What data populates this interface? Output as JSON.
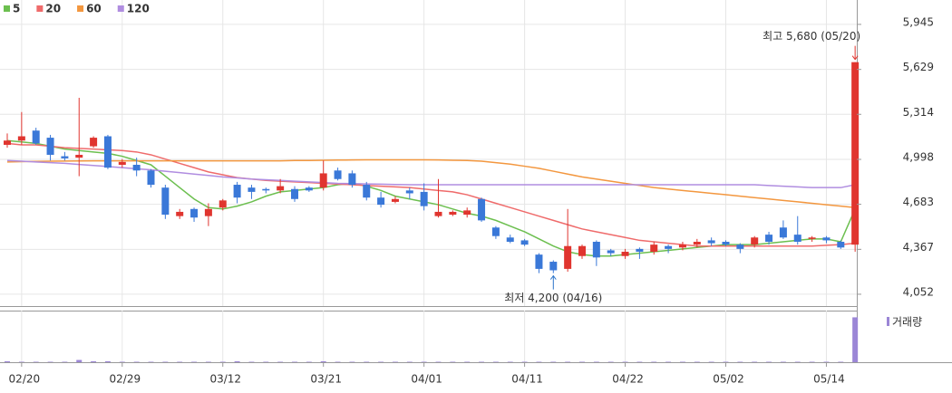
{
  "chart_data": {
    "type": "candlestick",
    "categories": [
      null,
      "02/20",
      null,
      null,
      null,
      null,
      null,
      null,
      "02/29",
      null,
      null,
      null,
      null,
      null,
      null,
      "03/12",
      null,
      null,
      null,
      null,
      null,
      null,
      "03/21",
      null,
      null,
      null,
      null,
      null,
      null,
      "04/01",
      null,
      null,
      null,
      null,
      null,
      null,
      "04/11",
      null,
      null,
      null,
      null,
      null,
      null,
      "04/22",
      null,
      null,
      null,
      null,
      null,
      null,
      "05/02",
      null,
      null,
      null,
      null,
      null,
      null,
      "05/14",
      null,
      null
    ],
    "open": [
      5100,
      5130,
      5200,
      5150,
      5020,
      5010,
      5090,
      5160,
      4960,
      4960,
      4920,
      4800,
      4600,
      4650,
      4600,
      4660,
      4820,
      4800,
      4790,
      4780,
      4790,
      4800,
      4800,
      4920,
      4900,
      4820,
      4730,
      4700,
      4780,
      4770,
      4600,
      4610,
      4610,
      4720,
      4520,
      4450,
      4430,
      4330,
      4280,
      4230,
      4320,
      4420,
      4360,
      4320,
      4370,
      4350,
      4390,
      4380,
      4400,
      4430,
      4420,
      4400,
      4400,
      4470,
      4520,
      4470,
      4440,
      4450,
      4420,
      4400
    ],
    "high": [
      5180,
      5330,
      5220,
      5170,
      5050,
      5430,
      5160,
      5170,
      5000,
      5010,
      4930,
      4820,
      4650,
      4660,
      4690,
      4720,
      4840,
      4820,
      4800,
      4860,
      4810,
      4810,
      4990,
      4940,
      4920,
      4840,
      4770,
      4740,
      4800,
      4830,
      4860,
      4640,
      4660,
      4730,
      4530,
      4470,
      4440,
      4340,
      4290,
      4650,
      4400,
      4430,
      4370,
      4370,
      4380,
      4420,
      4400,
      4420,
      4440,
      4450,
      4430,
      4410,
      4460,
      4490,
      4570,
      4600,
      4460,
      4460,
      4430,
      5680
    ],
    "low": [
      5080,
      5100,
      5100,
      4990,
      4990,
      4880,
      5080,
      4930,
      4940,
      4880,
      4800,
      4580,
      4580,
      4560,
      4530,
      4640,
      4690,
      4720,
      4760,
      4760,
      4700,
      4770,
      4780,
      4850,
      4800,
      4710,
      4660,
      4690,
      4720,
      4640,
      4590,
      4600,
      4590,
      4560,
      4440,
      4410,
      4390,
      4200,
      4200,
      4210,
      4300,
      4250,
      4320,
      4300,
      4300,
      4330,
      4340,
      4360,
      4380,
      4390,
      4390,
      4340,
      4380,
      4400,
      4440,
      4400,
      4420,
      4410,
      4370,
      4350
    ],
    "close": [
      5130,
      5160,
      5110,
      5030,
      5005,
      5030,
      5150,
      4940,
      4980,
      4920,
      4820,
      4610,
      4630,
      4590,
      4650,
      4710,
      4730,
      4770,
      4780,
      4810,
      4720,
      4780,
      4900,
      4860,
      4820,
      4730,
      4680,
      4720,
      4760,
      4670,
      4630,
      4630,
      4640,
      4570,
      4460,
      4420,
      4400,
      4230,
      4220,
      4390,
      4390,
      4310,
      4340,
      4350,
      4350,
      4400,
      4370,
      4400,
      4420,
      4410,
      4400,
      4370,
      4450,
      4420,
      4450,
      4420,
      4450,
      4430,
      4380,
      5680
    ],
    "up_color": "#e0352f",
    "down_color": "#3a78d8",
    "series": [
      {
        "name": "5",
        "color": "#6cbf4f",
        "values": [
          5130,
          5120,
          5110,
          5090,
          5070,
          5060,
          5050,
          5040,
          5020,
          4990,
          4960,
          4880,
          4800,
          4720,
          4660,
          4650,
          4670,
          4700,
          4740,
          4770,
          4780,
          4790,
          4800,
          4820,
          4830,
          4810,
          4780,
          4740,
          4720,
          4700,
          4680,
          4650,
          4620,
          4600,
          4570,
          4530,
          4490,
          4440,
          4390,
          4350,
          4330,
          4320,
          4320,
          4330,
          4340,
          4350,
          4360,
          4370,
          4380,
          4390,
          4400,
          4400,
          4400,
          4410,
          4420,
          4430,
          4440,
          4440,
          4420,
          4650
        ]
      },
      {
        "name": "20",
        "color": "#ef6b6b",
        "values": [
          5110,
          5100,
          5100,
          5090,
          5080,
          5075,
          5070,
          5065,
          5060,
          5050,
          5030,
          5000,
          4970,
          4940,
          4910,
          4890,
          4870,
          4860,
          4850,
          4845,
          4840,
          4835,
          4830,
          4825,
          4820,
          4815,
          4810,
          4805,
          4800,
          4790,
          4780,
          4770,
          4750,
          4720,
          4690,
          4660,
          4630,
          4600,
          4570,
          4540,
          4510,
          4490,
          4470,
          4450,
          4430,
          4420,
          4410,
          4400,
          4390,
          4390,
          4390,
          4390,
          4390,
          4390,
          4390,
          4390,
          4390,
          4395,
          4400,
          4410
        ]
      },
      {
        "name": "60",
        "color": "#f3973f",
        "values": [
          4980,
          4982,
          4984,
          4985,
          4986,
          4987,
          4988,
          4988,
          4988,
          4988,
          4988,
          4988,
          4988,
          4988,
          4988,
          4988,
          4988,
          4988,
          4988,
          4988,
          4990,
          4990,
          4992,
          4993,
          4994,
          4995,
          4995,
          4995,
          4995,
          4995,
          4994,
          4992,
          4990,
          4985,
          4975,
          4965,
          4950,
          4935,
          4915,
          4895,
          4875,
          4860,
          4845,
          4830,
          4815,
          4800,
          4790,
          4780,
          4770,
          4760,
          4750,
          4740,
          4730,
          4720,
          4710,
          4700,
          4690,
          4680,
          4670,
          4660
        ]
      },
      {
        "name": "120",
        "color": "#b08de0",
        "values": [
          4990,
          4985,
          4980,
          4975,
          4970,
          4962,
          4955,
          4948,
          4940,
          4932,
          4925,
          4915,
          4905,
          4895,
          4885,
          4875,
          4868,
          4860,
          4855,
          4850,
          4845,
          4840,
          4835,
          4830,
          4828,
          4826,
          4824,
          4822,
          4820,
          4820,
          4820,
          4820,
          4820,
          4820,
          4820,
          4820,
          4820,
          4820,
          4820,
          4820,
          4820,
          4820,
          4820,
          4820,
          4820,
          4820,
          4820,
          4820,
          4820,
          4820,
          4820,
          4820,
          4820,
          4815,
          4810,
          4805,
          4800,
          4800,
          4800,
          4820
        ]
      }
    ],
    "volume": {
      "name": "거래량",
      "color": "#9b86d6",
      "ylim": [
        0,
        115
      ],
      "values": [
        2,
        1,
        1,
        1,
        1,
        5,
        2,
        2,
        1,
        1,
        1,
        1,
        1,
        1,
        1,
        1,
        2,
        1,
        1,
        1,
        1,
        1,
        2,
        1,
        1,
        1,
        1,
        1,
        1,
        1,
        1,
        1,
        1,
        1,
        1,
        1,
        1,
        1,
        1,
        1,
        1,
        1,
        1,
        1,
        1,
        1,
        1,
        1,
        1,
        1,
        1,
        1,
        1,
        1,
        1,
        1,
        1,
        1,
        1,
        100
      ]
    },
    "ylim": [
      3969,
      6116
    ],
    "yticks": [
      {
        "value": 4052,
        "label": "4,052"
      },
      {
        "value": 4367,
        "label": "4,367"
      },
      {
        "value": 4683,
        "label": "4,683"
      },
      {
        "value": 4998,
        "label": "4,998"
      },
      {
        "value": 5314,
        "label": "5,314"
      },
      {
        "value": 5629,
        "label": "5,629"
      },
      {
        "value": 5945,
        "label": "5,945"
      }
    ],
    "grid": true,
    "annotations": [
      {
        "text": "최고 5,680 (05/20)",
        "index": 59,
        "at": "high",
        "color": "#e0352f"
      },
      {
        "text": "최저 4,200 (04/16)",
        "index": 38,
        "at": "low",
        "color": "#2a73c9"
      }
    ]
  }
}
